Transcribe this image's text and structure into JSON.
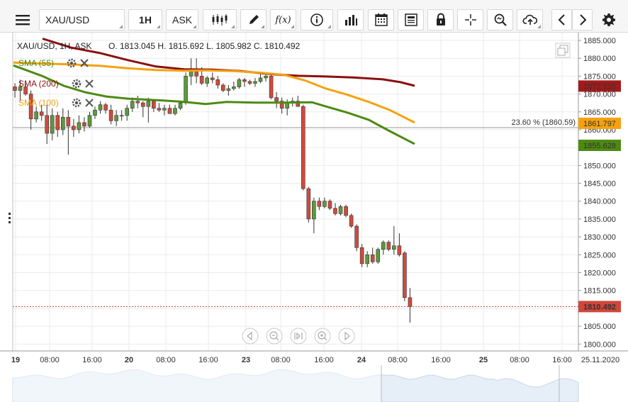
{
  "toolbar": {
    "menu_icon": "hamburger-menu-icon",
    "symbol": "XAU/USD",
    "timeframe": "1H",
    "price_type": "ASK",
    "icons": [
      "candlestick-type-icon",
      "draw-pencil-icon",
      "function-fx-icon",
      "info-icon",
      "volume-bars-icon",
      "calendar-icon",
      "news-icon",
      "lock-icon",
      "crosshair-icon",
      "zoom-icon",
      "cloud-upload-icon",
      "arrow-left-icon",
      "arrow-right-icon",
      "settings-gear-icon"
    ],
    "fx_label": "f(x)"
  },
  "header": {
    "title": "XAU/USD, 1H, ASK",
    "ohlc": "O. 1813.045 H. 1815.692 L. 1805.982 C. 1810.492"
  },
  "indicators": [
    {
      "label": "SMA (55)",
      "color": "#4d8a12"
    },
    {
      "label": "SMA (200)",
      "color": "#8b0f0f"
    },
    {
      "label": "SMA (100)",
      "color": "#f4a20f"
    }
  ],
  "fib_level": "23.60 % (1860.59)",
  "price_tags": {
    "sma200": {
      "text": "1872.215",
      "value": 1872.215,
      "color": "#a01b1b"
    },
    "sma100": {
      "text": "1861.797",
      "value": 1861.797,
      "color": "#f4a20f"
    },
    "sma55": {
      "text": "1855.628",
      "value": 1855.628,
      "color": "#4d8a12"
    },
    "last": {
      "text": "1810.492",
      "value": 1810.492,
      "color": "#d0463a"
    }
  },
  "nav_icons": [
    "scroll-left-icon",
    "zoom-out-icon",
    "reset-view-icon",
    "zoom-in-icon",
    "scroll-right-icon"
  ],
  "chart_data": {
    "type": "candlestick",
    "y_ticks": [
      1885,
      1880,
      1875,
      1870,
      1865,
      1860,
      1855,
      1850,
      1845,
      1840,
      1835,
      1830,
      1825,
      1820,
      1815,
      1810,
      1805,
      1800
    ],
    "y_tick_labels": [
      "1885.000",
      "1880.000",
      "1875.000",
      "1870.000",
      "1865.000",
      "1860.000",
      "1855.000",
      "1850.000",
      "1845.000",
      "1840.000",
      "1835.000",
      "1830.000",
      "1825.000",
      "1820.000",
      "1815.000",
      "1810.000",
      "1805.000",
      "1800.000"
    ],
    "ylim": [
      1799,
      1886
    ],
    "x_tick_labels": [
      "19",
      "08:00",
      "16:00",
      "20",
      "08:00",
      "16:00",
      "23",
      "08:00",
      "16:00",
      "24",
      "08:00",
      "16:00",
      "25",
      "08:00",
      "16:00",
      "25.11.2020"
    ],
    "x_tick_bold": [
      true,
      false,
      false,
      true,
      false,
      false,
      true,
      false,
      false,
      true,
      false,
      false,
      true,
      false,
      false,
      false
    ],
    "candles": [
      [
        1872,
        1873,
        1869,
        1871
      ],
      [
        1871,
        1874,
        1868,
        1872
      ],
      [
        1872,
        1873,
        1869.5,
        1870
      ],
      [
        1870,
        1871,
        1860,
        1863
      ],
      [
        1863,
        1866.5,
        1862,
        1865
      ],
      [
        1865,
        1867,
        1862.5,
        1864
      ],
      [
        1864,
        1867,
        1856,
        1859
      ],
      [
        1859,
        1866,
        1857,
        1864
      ],
      [
        1864,
        1865,
        1858,
        1860
      ],
      [
        1860,
        1866,
        1858.5,
        1863.5
      ],
      [
        1863.5,
        1865.5,
        1853,
        1861
      ],
      [
        1861,
        1863,
        1858,
        1860
      ],
      [
        1860,
        1864,
        1859,
        1862
      ],
      [
        1862,
        1863.5,
        1859.5,
        1861
      ],
      [
        1861,
        1865,
        1860.5,
        1864
      ],
      [
        1864,
        1866.5,
        1863,
        1865.5
      ],
      [
        1865.5,
        1868,
        1864.5,
        1867
      ],
      [
        1867,
        1867.5,
        1864.5,
        1865.5
      ],
      [
        1865.5,
        1867,
        1861.5,
        1862.5
      ],
      [
        1862.5,
        1865.5,
        1861,
        1864
      ],
      [
        1864,
        1865.5,
        1862.5,
        1864
      ],
      [
        1864,
        1867,
        1862.5,
        1866
      ],
      [
        1866,
        1869,
        1865,
        1868
      ],
      [
        1868,
        1869.5,
        1866,
        1867.5
      ],
      [
        1867.5,
        1868,
        1863.5,
        1866.5
      ],
      [
        1866.5,
        1869,
        1862,
        1868
      ],
      [
        1868,
        1868.5,
        1865,
        1866
      ],
      [
        1866,
        1867.5,
        1865,
        1865.5
      ],
      [
        1865.5,
        1867,
        1864,
        1866
      ],
      [
        1866,
        1867,
        1864.5,
        1864.5
      ],
      [
        1864.5,
        1867,
        1864,
        1866
      ],
      [
        1866,
        1868,
        1865.5,
        1867.5
      ],
      [
        1867.5,
        1876,
        1867,
        1875
      ],
      [
        1875,
        1880,
        1872.5,
        1877
      ],
      [
        1877,
        1880,
        1873,
        1875
      ],
      [
        1875,
        1877.5,
        1872.5,
        1873
      ],
      [
        1873,
        1875,
        1872,
        1874.5
      ],
      [
        1874.5,
        1876,
        1873,
        1874
      ],
      [
        1874,
        1875,
        1871.5,
        1872.5
      ],
      [
        1872.5,
        1873,
        1870.5,
        1871
      ],
      [
        1871,
        1872.5,
        1869.5,
        1871.5
      ],
      [
        1871.5,
        1873.5,
        1871,
        1872
      ],
      [
        1872,
        1874.5,
        1871.5,
        1874
      ],
      [
        1874,
        1874.5,
        1872,
        1873.5
      ],
      [
        1873.5,
        1874,
        1872.5,
        1873
      ],
      [
        1873,
        1874.5,
        1872,
        1873.5
      ],
      [
        1873.5,
        1876,
        1873,
        1874.5
      ],
      [
        1874.5,
        1875.5,
        1873.5,
        1875
      ],
      [
        1875,
        1875.5,
        1868.5,
        1869
      ],
      [
        1869,
        1870.5,
        1866,
        1868
      ],
      [
        1868,
        1869,
        1864.5,
        1866
      ],
      [
        1866,
        1868.5,
        1864,
        1867.5
      ],
      [
        1867.5,
        1869,
        1866.5,
        1868
      ],
      [
        1868,
        1869.5,
        1866.5,
        1866.5
      ],
      [
        1866.5,
        1867,
        1843,
        1843.5
      ],
      [
        1843.5,
        1844,
        1834,
        1835
      ],
      [
        1835,
        1841,
        1831,
        1840
      ],
      [
        1840,
        1841,
        1837.5,
        1838.5
      ],
      [
        1838.5,
        1841,
        1838,
        1840
      ],
      [
        1840,
        1840.5,
        1837.5,
        1838
      ],
      [
        1838,
        1839.5,
        1836,
        1836.5
      ],
      [
        1836.5,
        1839,
        1836,
        1838.5
      ],
      [
        1838.5,
        1839,
        1835.5,
        1836
      ],
      [
        1836,
        1836.5,
        1832.5,
        1833
      ],
      [
        1833,
        1833.5,
        1826,
        1827
      ],
      [
        1827,
        1828,
        1821.5,
        1822.5
      ],
      [
        1822.5,
        1826,
        1821.5,
        1825
      ],
      [
        1825,
        1827,
        1822.5,
        1823
      ],
      [
        1823,
        1827,
        1822.5,
        1826.5
      ],
      [
        1826.5,
        1829,
        1825,
        1828.5
      ],
      [
        1828.5,
        1829,
        1826,
        1826.5
      ],
      [
        1826.5,
        1833,
        1825,
        1827.5
      ],
      [
        1827.5,
        1831,
        1824.5,
        1825
      ],
      [
        1825.5,
        1826,
        1812,
        1813
      ],
      [
        1813,
        1815.7,
        1806,
        1810.5
      ]
    ],
    "sma55": [
      [
        19,
        1878
      ],
      [
        60,
        1875
      ],
      [
        90,
        1872.3
      ],
      [
        120,
        1870.5
      ],
      [
        150,
        1869.3
      ],
      [
        180,
        1868.7
      ],
      [
        200,
        1868.5
      ],
      [
        228,
        1868.2
      ],
      [
        260,
        1867.8
      ],
      [
        290,
        1867.2
      ],
      [
        320,
        1867.8
      ],
      [
        360,
        1867.6
      ],
      [
        400,
        1867.6
      ],
      [
        440,
        1867.7
      ],
      [
        460,
        1866.5
      ],
      [
        490,
        1864.8
      ],
      [
        520,
        1862.8
      ],
      [
        550,
        1859.6
      ],
      [
        585,
        1856
      ]
    ],
    "sma100": [
      [
        19,
        1878.8
      ],
      [
        60,
        1878.5
      ],
      [
        100,
        1878.3
      ],
      [
        140,
        1877.9
      ],
      [
        180,
        1877.2
      ],
      [
        220,
        1876.7
      ],
      [
        260,
        1876.5
      ],
      [
        290,
        1876.6
      ],
      [
        330,
        1876.4
      ],
      [
        370,
        1875.9
      ],
      [
        400,
        1875.4
      ],
      [
        430,
        1873.8
      ],
      [
        460,
        1871.5
      ],
      [
        490,
        1869.8
      ],
      [
        520,
        1867.8
      ],
      [
        550,
        1865.5
      ],
      [
        585,
        1862
      ]
    ],
    "sma200": [
      [
        60,
        1885.5
      ],
      [
        100,
        1883
      ],
      [
        140,
        1881.5
      ],
      [
        180,
        1879.5
      ],
      [
        220,
        1877.7
      ],
      [
        260,
        1876.9
      ],
      [
        300,
        1876.8
      ],
      [
        340,
        1876.4
      ],
      [
        380,
        1875.6
      ],
      [
        420,
        1875.1
      ],
      [
        460,
        1874.9
      ],
      [
        500,
        1874.6
      ],
      [
        540,
        1874.1
      ],
      [
        565,
        1873.3
      ],
      [
        585,
        1872.3
      ]
    ],
    "fib": 1860.59,
    "last": 1810.492
  }
}
